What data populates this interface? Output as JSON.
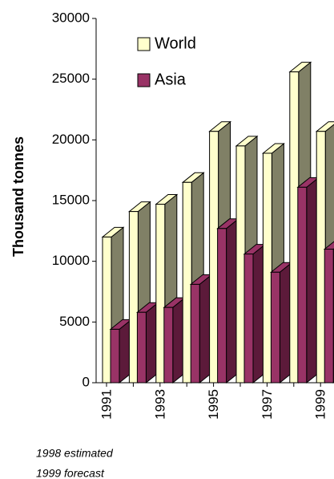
{
  "chart_data": {
    "type": "bar3d",
    "y_label": "Thousand tonnes",
    "categories": [
      "1991",
      null,
      "1993",
      null,
      "1995",
      null,
      "1997",
      null,
      "1999"
    ],
    "series": [
      {
        "name": "World",
        "color": "#ffffcc",
        "side_color": "#808066",
        "values": [
          12000,
          14100,
          14700,
          16500,
          20700,
          19500,
          18900,
          25600,
          20700
        ]
      },
      {
        "name": "Asia",
        "color": "#993366",
        "side_color": "#5c1a3a",
        "values": [
          4400,
          5800,
          6200,
          8100,
          12700,
          10600,
          9100,
          16100,
          11000
        ]
      }
    ],
    "ylim": [
      0,
      30000
    ],
    "yticks": [
      0,
      5000,
      10000,
      15000,
      20000,
      25000,
      30000
    ],
    "notes": [
      "1998 estimated",
      "1999 forecast"
    ]
  }
}
